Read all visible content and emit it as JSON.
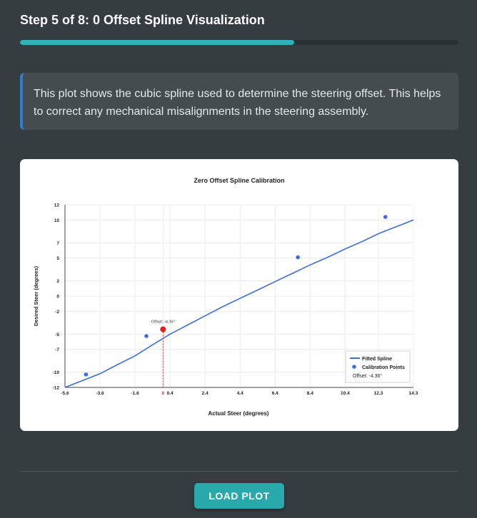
{
  "header": {
    "step_title": "Step 5 of 8: 0 Offset Spline Visualization",
    "progress": 0.625
  },
  "info": {
    "text": "This plot shows the cubic spline used to determine the steering offset. This helps to correct any mechanical misalignments in the steering assembly."
  },
  "chart_data": {
    "type": "line",
    "title": "Zero Offset Spline Calibration",
    "xlabel": "Actual Steer (degrees)",
    "ylabel": "Desired Steer (degrees)",
    "xlim": [
      -5.6,
      14.3
    ],
    "ylim": [
      -12,
      12
    ],
    "x_ticks": [
      -5.6,
      -3.6,
      -1.6,
      0,
      0.4,
      2.4,
      4.4,
      6.4,
      8.4,
      10.4,
      12.3,
      14.3
    ],
    "x_tick_labels": [
      "-5.6",
      "-3.6",
      "-1.6",
      "0",
      "0.4",
      "2.4",
      "4.4",
      "6.4",
      "8.4",
      "10.4",
      "12.3",
      "14.3"
    ],
    "y_ticks": [
      12,
      10,
      7,
      5,
      2,
      0,
      -2,
      -5,
      -7,
      -10,
      -12
    ],
    "y_tick_labels": [
      "12",
      "10",
      "7",
      "5",
      "2",
      "0",
      "-2",
      "-5",
      "-7",
      "-10",
      "-12"
    ],
    "grid": true,
    "legend_position": "bottom-right",
    "series": [
      {
        "name": "Fitted Spline",
        "kind": "line",
        "color": "#3a6fe0",
        "x": [
          -5.6,
          -4.6,
          -3.6,
          -2.6,
          -1.6,
          -0.6,
          0.4,
          1.4,
          2.4,
          3.4,
          4.4,
          5.4,
          6.4,
          7.4,
          8.4,
          9.4,
          10.4,
          11.4,
          12.3,
          13.3,
          14.3
        ],
        "y": [
          -12.0,
          -11.1,
          -10.2,
          -9.0,
          -7.85,
          -6.4,
          -5.0,
          -3.8,
          -2.6,
          -1.4,
          -0.3,
          0.8,
          1.9,
          3.0,
          4.1,
          5.1,
          6.2,
          7.2,
          8.2,
          9.1,
          10.0
        ]
      },
      {
        "name": "Calibration Points",
        "kind": "scatter",
        "color": "#3a6fe0",
        "x": [
          -4.4,
          -0.95,
          7.7,
          12.7
        ],
        "y": [
          -10.3,
          -5.25,
          5.1,
          10.4
        ]
      }
    ],
    "offset_marker": {
      "x": 0,
      "y": -4.36,
      "label": "Offset: -4.36°",
      "color": "#e8201a"
    },
    "legend": {
      "line_label": "Fitted Spline",
      "point_label": "Calibration Points",
      "offset_label": "Offset: -4.36°"
    }
  },
  "actions": {
    "load_plot_label": "LOAD PLOT"
  }
}
